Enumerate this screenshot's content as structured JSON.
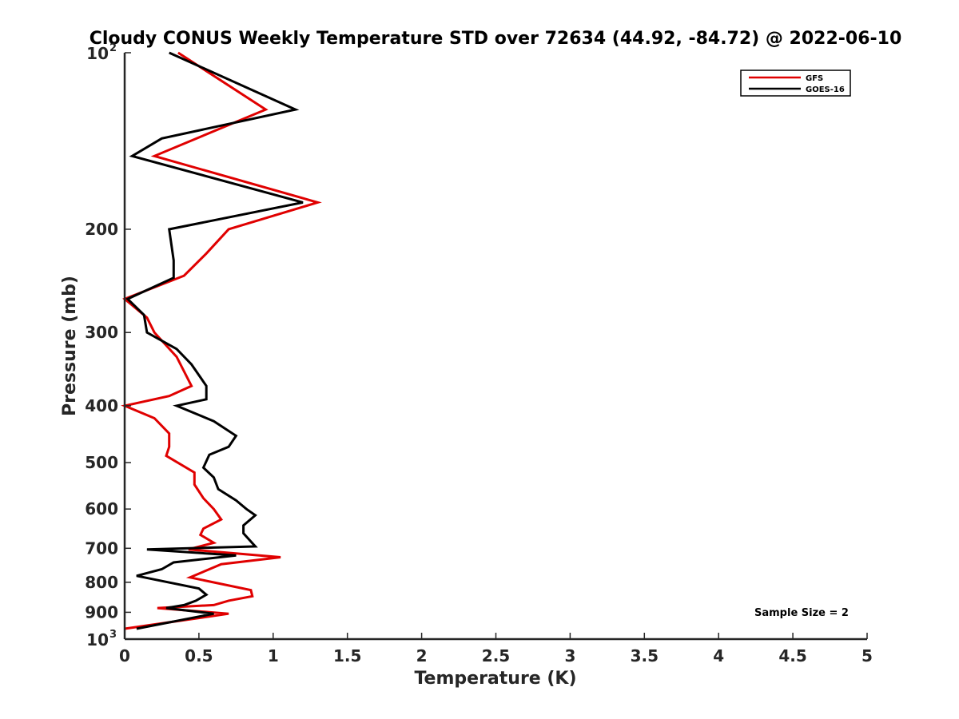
{
  "chart_data": {
    "type": "line",
    "title": "Cloudy CONUS Weekly Temperature STD over 72634 (44.92, -84.72) @ 2022-06-10",
    "xlabel": "Temperature (K)",
    "ylabel": "Pressure (mb)",
    "xlim": [
      0,
      5
    ],
    "ylim": [
      100,
      1000
    ],
    "y_scale": "log",
    "y_reversed": true,
    "x_ticks": [
      "0",
      "0.5",
      "1",
      "1.5",
      "2",
      "2.5",
      "3",
      "3.5",
      "4",
      "4.5",
      "5"
    ],
    "x_tick_values": [
      0,
      0.5,
      1,
      1.5,
      2,
      2.5,
      3,
      3.5,
      4,
      4.5,
      5
    ],
    "y_ticks": [
      "200",
      "300",
      "400",
      "500",
      "600",
      "700",
      "800",
      "900"
    ],
    "y_tick_values": [
      200,
      300,
      400,
      500,
      600,
      700,
      800,
      900
    ],
    "y_tick_100": {
      "base": "10",
      "exp": "2",
      "value": 100
    },
    "y_tick_1000": {
      "base": "10",
      "exp": "3",
      "value": 1000
    },
    "grid": false,
    "legend_position": "top-right",
    "annotation": "Sample Size = 2",
    "series": [
      {
        "name": "GFS",
        "color": "#e00000",
        "points": [
          [
            0.36,
            100
          ],
          [
            0.95,
            125
          ],
          [
            0.2,
            150
          ],
          [
            1.3,
            180
          ],
          [
            0.7,
            200
          ],
          [
            0.55,
            220
          ],
          [
            0.4,
            240
          ],
          [
            0.0,
            263
          ],
          [
            0.15,
            283
          ],
          [
            0.2,
            300
          ],
          [
            0.35,
            330
          ],
          [
            0.45,
            370
          ],
          [
            0.3,
            385
          ],
          [
            0.0,
            400
          ],
          [
            0.2,
            420
          ],
          [
            0.3,
            446
          ],
          [
            0.3,
            470
          ],
          [
            0.28,
            487
          ],
          [
            0.47,
            520
          ],
          [
            0.47,
            545
          ],
          [
            0.53,
            575
          ],
          [
            0.6,
            600
          ],
          [
            0.65,
            625
          ],
          [
            0.53,
            648
          ],
          [
            0.51,
            664
          ],
          [
            0.6,
            685
          ],
          [
            0.43,
            703
          ],
          [
            1.05,
            725
          ],
          [
            0.65,
            745
          ],
          [
            0.44,
            785
          ],
          [
            0.85,
            825
          ],
          [
            0.86,
            845
          ],
          [
            0.7,
            860
          ],
          [
            0.6,
            875
          ],
          [
            0.22,
            885
          ],
          [
            0.7,
            905
          ],
          [
            0.0,
            960
          ]
        ]
      },
      {
        "name": "GOES-16",
        "color": "#000000",
        "points": [
          [
            0.3,
            100
          ],
          [
            1.15,
            125
          ],
          [
            0.25,
            140
          ],
          [
            0.05,
            150
          ],
          [
            1.2,
            180
          ],
          [
            0.3,
            200
          ],
          [
            0.33,
            226
          ],
          [
            0.33,
            242
          ],
          [
            0.02,
            263
          ],
          [
            0.13,
            280
          ],
          [
            0.15,
            300
          ],
          [
            0.35,
            320
          ],
          [
            0.45,
            340
          ],
          [
            0.55,
            370
          ],
          [
            0.55,
            390
          ],
          [
            0.35,
            400
          ],
          [
            0.6,
            425
          ],
          [
            0.75,
            450
          ],
          [
            0.7,
            470
          ],
          [
            0.57,
            485
          ],
          [
            0.53,
            510
          ],
          [
            0.6,
            530
          ],
          [
            0.63,
            555
          ],
          [
            0.75,
            580
          ],
          [
            0.82,
            600
          ],
          [
            0.88,
            615
          ],
          [
            0.8,
            640
          ],
          [
            0.8,
            660
          ],
          [
            0.88,
            695
          ],
          [
            0.15,
            703
          ],
          [
            0.75,
            720
          ],
          [
            0.33,
            740
          ],
          [
            0.25,
            760
          ],
          [
            0.08,
            780
          ],
          [
            0.5,
            820
          ],
          [
            0.55,
            840
          ],
          [
            0.48,
            860
          ],
          [
            0.4,
            875
          ],
          [
            0.28,
            885
          ],
          [
            0.6,
            905
          ],
          [
            0.08,
            960
          ]
        ]
      }
    ]
  }
}
